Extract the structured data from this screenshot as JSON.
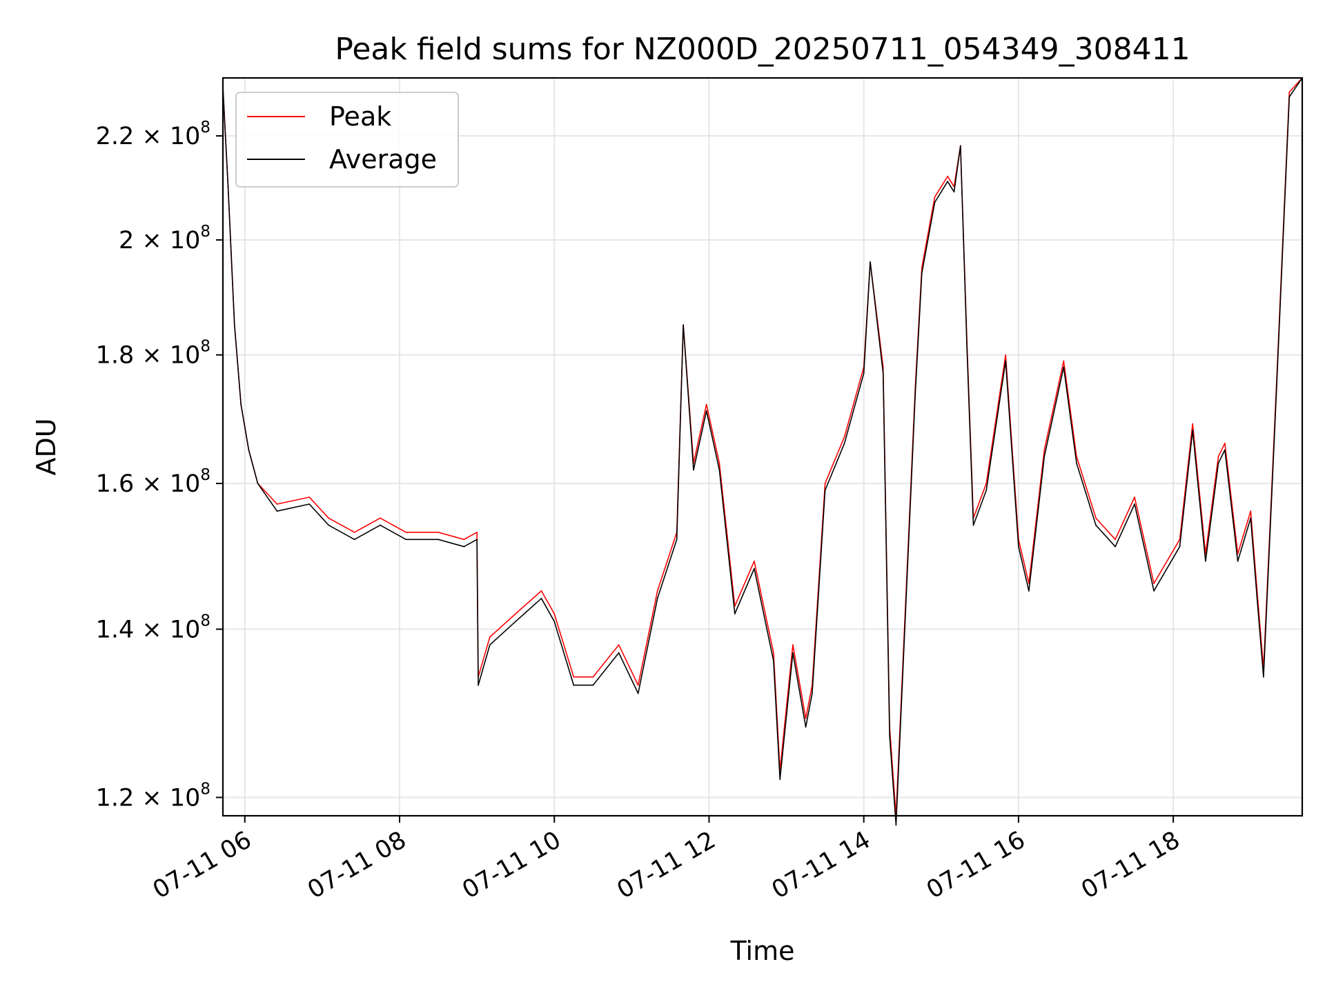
{
  "chart_data": {
    "type": "line",
    "title": "Peak field sums for NZ000D_20250711_054349_308411",
    "xlabel": "Time",
    "ylabel": "ADU",
    "yscale": "log",
    "ylim": [
      118000000,
      232000000
    ],
    "xlim": [
      "2025-07-11 05:43",
      "2025-07-11 19:40"
    ],
    "grid": true,
    "legend_position": "top-left",
    "x_ticks": [
      "2025-07-11 06:00",
      "2025-07-11 08:00",
      "2025-07-11 10:00",
      "2025-07-11 12:00",
      "2025-07-11 14:00",
      "2025-07-11 16:00",
      "2025-07-11 18:00"
    ],
    "x_tick_labels": [
      "07-11 06",
      "07-11 08",
      "07-11 10",
      "07-11 12",
      "07-11 14",
      "07-11 16",
      "07-11 18"
    ],
    "y_ticks": [
      {
        "value": 120000000,
        "mantissa": "1.2",
        "exponent": "8"
      },
      {
        "value": 140000000,
        "mantissa": "1.4",
        "exponent": "8"
      },
      {
        "value": 160000000,
        "mantissa": "1.6",
        "exponent": "8"
      },
      {
        "value": 180000000,
        "mantissa": "1.8",
        "exponent": "8"
      },
      {
        "value": 200000000,
        "mantissa": "2",
        "exponent": "8"
      },
      {
        "value": 220000000,
        "mantissa": "2.2",
        "exponent": "8"
      }
    ],
    "y_tick_base": "× 10",
    "x": [
      "2025-07-11 05:43",
      "2025-07-11 05:47",
      "2025-07-11 05:52",
      "2025-07-11 05:57",
      "2025-07-11 06:03",
      "2025-07-11 06:10",
      "2025-07-11 06:25",
      "2025-07-11 06:50",
      "2025-07-11 07:05",
      "2025-07-11 07:25",
      "2025-07-11 07:45",
      "2025-07-11 08:05",
      "2025-07-11 08:30",
      "2025-07-11 08:50",
      "2025-07-11 09:00",
      "2025-07-11 09:01",
      "2025-07-11 09:10",
      "2025-07-11 09:30",
      "2025-07-11 09:50",
      "2025-07-11 10:00",
      "2025-07-11 10:15",
      "2025-07-11 10:30",
      "2025-07-11 10:50",
      "2025-07-11 11:05",
      "2025-07-11 11:20",
      "2025-07-11 11:35",
      "2025-07-11 11:40",
      "2025-07-11 11:48",
      "2025-07-11 11:58",
      "2025-07-11 12:08",
      "2025-07-11 12:20",
      "2025-07-11 12:35",
      "2025-07-11 12:50",
      "2025-07-11 12:55",
      "2025-07-11 13:05",
      "2025-07-11 13:15",
      "2025-07-11 13:20",
      "2025-07-11 13:30",
      "2025-07-11 13:45",
      "2025-07-11 14:00",
      "2025-07-11 14:05",
      "2025-07-11 14:15",
      "2025-07-11 14:20",
      "2025-07-11 14:25",
      "2025-07-11 14:40",
      "2025-07-11 14:45",
      "2025-07-11 14:55",
      "2025-07-11 15:05",
      "2025-07-11 15:10",
      "2025-07-11 15:15",
      "2025-07-11 15:20",
      "2025-07-11 15:25",
      "2025-07-11 15:35",
      "2025-07-11 15:50",
      "2025-07-11 16:00",
      "2025-07-11 16:08",
      "2025-07-11 16:20",
      "2025-07-11 16:35",
      "2025-07-11 16:45",
      "2025-07-11 17:00",
      "2025-07-11 17:15",
      "2025-07-11 17:30",
      "2025-07-11 17:45",
      "2025-07-11 18:05",
      "2025-07-11 18:15",
      "2025-07-11 18:25",
      "2025-07-11 18:35",
      "2025-07-11 18:40",
      "2025-07-11 18:50",
      "2025-07-11 19:00",
      "2025-07-11 19:05",
      "2025-07-11 19:10",
      "2025-07-11 19:20",
      "2025-07-11 19:30",
      "2025-07-11 19:40"
    ],
    "series": [
      {
        "name": "Peak",
        "color": "#ff0000",
        "values": [
          230000000,
          210000000,
          185000000,
          172000000,
          165000000,
          160000000,
          157000000,
          158000000,
          155000000,
          153000000,
          155000000,
          153000000,
          153000000,
          152000000,
          153000000,
          134000000,
          139000000,
          142000000,
          145000000,
          142000000,
          134000000,
          134000000,
          138000000,
          133000000,
          145000000,
          153000000,
          185000000,
          163000000,
          172000000,
          163000000,
          143000000,
          149000000,
          137000000,
          123000000,
          138000000,
          129000000,
          133000000,
          160000000,
          167000000,
          178000000,
          196000000,
          178000000,
          128000000,
          118000000,
          175000000,
          195000000,
          208000000,
          212000000,
          210000000,
          218000000,
          182000000,
          155000000,
          160000000,
          180000000,
          152000000,
          146000000,
          165000000,
          179000000,
          164000000,
          155000000,
          152000000,
          158000000,
          146000000,
          152000000,
          169000000,
          150000000,
          164000000,
          166000000,
          150000000,
          156000000,
          145000000,
          135000000,
          175000000,
          229000000,
          232000000
        ]
      },
      {
        "name": "Average",
        "color": "#000000",
        "values": [
          230000000,
          210000000,
          185000000,
          172000000,
          165000000,
          160000000,
          156000000,
          157000000,
          154000000,
          152000000,
          154000000,
          152000000,
          152000000,
          151000000,
          152000000,
          133000000,
          138000000,
          141000000,
          144000000,
          141000000,
          133000000,
          133000000,
          137000000,
          132000000,
          144000000,
          152000000,
          185000000,
          162000000,
          171000000,
          162000000,
          142000000,
          148000000,
          136000000,
          122000000,
          137000000,
          128000000,
          132000000,
          159000000,
          166000000,
          177000000,
          196000000,
          177000000,
          127000000,
          117000000,
          174000000,
          194000000,
          207000000,
          211000000,
          209000000,
          218000000,
          181000000,
          154000000,
          159000000,
          179000000,
          151000000,
          145000000,
          164000000,
          178000000,
          163000000,
          154000000,
          151000000,
          157000000,
          145000000,
          151000000,
          168000000,
          149000000,
          163000000,
          165000000,
          149000000,
          155000000,
          144000000,
          134000000,
          174000000,
          228000000,
          232000000
        ]
      }
    ]
  }
}
